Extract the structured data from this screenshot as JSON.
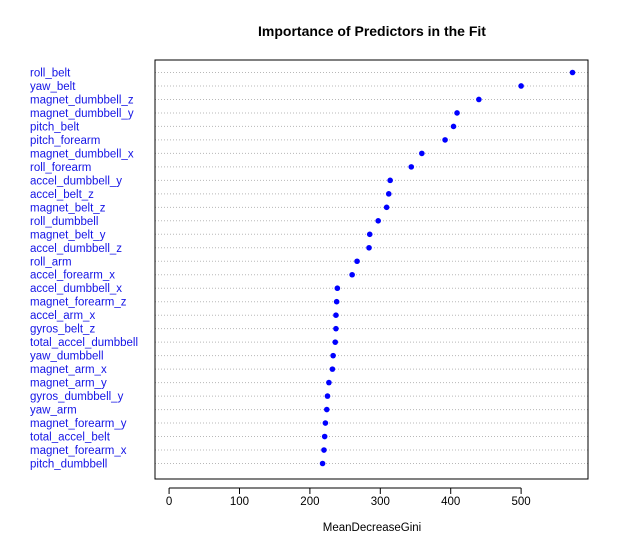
{
  "chart_data": {
    "type": "scatter",
    "title": "Importance of Predictors in the Fit",
    "xlabel": "MeanDecreaseGini",
    "ylabel": "",
    "xlim": [
      -20,
      595
    ],
    "xticks": [
      0,
      100,
      200,
      300,
      400,
      500
    ],
    "grid": "horizontal-dotted",
    "point_color": "#0000ff",
    "label_color": "#1515e6",
    "categories": [
      "roll_belt",
      "yaw_belt",
      "magnet_dumbbell_z",
      "magnet_dumbbell_y",
      "pitch_belt",
      "pitch_forearm",
      "magnet_dumbbell_x",
      "roll_forearm",
      "accel_dumbbell_y",
      "accel_belt_z",
      "magnet_belt_z",
      "roll_dumbbell",
      "magnet_belt_y",
      "accel_dumbbell_z",
      "roll_arm",
      "accel_forearm_x",
      "accel_dumbbell_x",
      "magnet_forearm_z",
      "accel_arm_x",
      "gyros_belt_z",
      "total_accel_dumbbell",
      "yaw_dumbbell",
      "magnet_arm_x",
      "magnet_arm_y",
      "gyros_dumbbell_y",
      "yaw_arm",
      "magnet_forearm_y",
      "total_accel_belt",
      "magnet_forearm_x",
      "pitch_dumbbell"
    ],
    "values": [
      573,
      500,
      440,
      409,
      404,
      392,
      359,
      344,
      314,
      312,
      309,
      297,
      285,
      284,
      267,
      260,
      239,
      238,
      237,
      237,
      236,
      233,
      232,
      227,
      225,
      224,
      222,
      221,
      220,
      218
    ]
  }
}
